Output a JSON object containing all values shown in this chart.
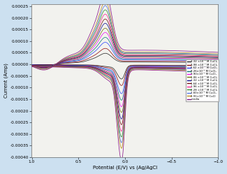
{
  "xlabel": "Potential (E/V) vs (Ag/AgCl",
  "ylabel": "Current (Amp)",
  "xlim": [
    1.0,
    -1.0
  ],
  "ylim": [
    -0.0004,
    0.00026
  ],
  "yticks": [
    -0.0004,
    -0.00035,
    -0.0003,
    -0.00025,
    -0.0002,
    -0.00015,
    -0.0001,
    -5e-05,
    0.0,
    5e-05,
    0.0001,
    0.00015,
    0.0002,
    0.00025
  ],
  "xticks": [
    1.0,
    0.5,
    0.0,
    -0.5,
    -1.0
  ],
  "background": "#cce0f0",
  "plot_background": "#f2f2ee",
  "legend_entries": [
    {
      "label": "3.32 ×10⁻⁴ M CuCl₂",
      "color": "#1a1a1a"
    },
    {
      "label": "4.98 ×10⁻⁴ M CuCl₂",
      "color": "#8b0000"
    },
    {
      "label": "6.62 ×10⁻⁴ M CuCl₂",
      "color": "#1e3cff"
    },
    {
      "label": "8.26×10⁻⁴ M CuCl₂",
      "color": "#007070"
    },
    {
      "label": "9.90×10⁻⁴ M CuCl₂",
      "color": "#ee00ee"
    },
    {
      "label": "1.06 ×10⁻³ M CuCl₂",
      "color": "#6b6b00"
    },
    {
      "label": "1.32 ×10⁻³ M CuCl₂",
      "color": "#00008b"
    },
    {
      "label": "1.64 ×10⁻³ M CuCl₂",
      "color": "#6b0000"
    },
    {
      "label": "1.96 ×10⁻³ M CuCl₂",
      "color": "#ff1493"
    },
    {
      "label": "2.28 ×10⁻³ M CuCl₂",
      "color": "#228b22"
    },
    {
      "label": "2.60×10⁻³ M CuCl₂",
      "color": "#4169e1"
    },
    {
      "label": "2.91×10⁻³ M CuCl",
      "color": "#b8860b"
    },
    {
      "label": "media",
      "color": "#800080"
    }
  ],
  "curves": [
    {
      "color": "#1a1a1a",
      "s": 0.18
    },
    {
      "color": "#8b0000",
      "s": 0.26
    },
    {
      "color": "#1e3cff",
      "s": 0.36
    },
    {
      "color": "#007070",
      "s": 0.44
    },
    {
      "color": "#ee00ee",
      "s": 0.52
    },
    {
      "color": "#6b6b00",
      "s": 0.59
    },
    {
      "color": "#00008b",
      "s": 0.67
    },
    {
      "color": "#6b0000",
      "s": 0.74
    },
    {
      "color": "#ff1493",
      "s": 0.82
    },
    {
      "color": "#228b22",
      "s": 0.89
    },
    {
      "color": "#4169e1",
      "s": 0.96
    },
    {
      "color": "#b8860b",
      "s": 1.03
    },
    {
      "color": "#800080",
      "s": 1.18
    }
  ]
}
